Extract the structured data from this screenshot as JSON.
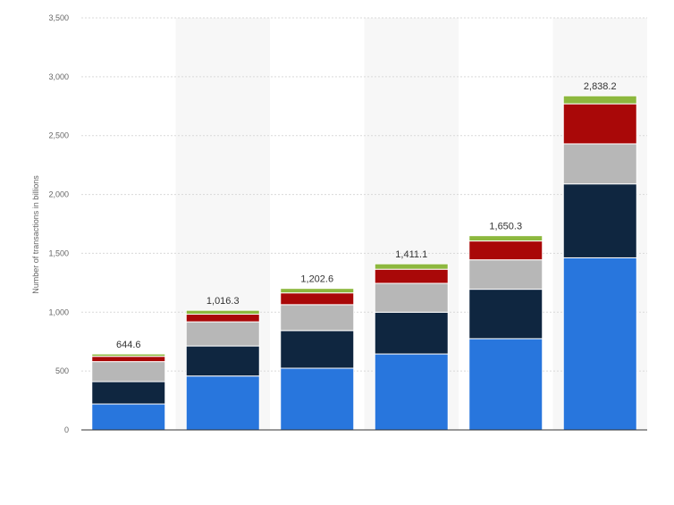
{
  "chart_data": {
    "type": "bar",
    "stacked": true,
    "title": "",
    "xlabel": "",
    "ylabel": "Number of transactions in billions",
    "ylim": [
      0,
      3500
    ],
    "yticks": [
      0,
      500,
      1000,
      1500,
      2000,
      2500,
      3000,
      3500
    ],
    "ytick_labels": [
      "0",
      "500",
      "1,000",
      "1,500",
      "2,000",
      "2,500",
      "3,000",
      "3,500"
    ],
    "grid": true,
    "legend": "none",
    "categories": [
      "",
      "",
      "",
      "",
      "",
      ""
    ],
    "totals": [
      644.6,
      1016.3,
      1202.6,
      1411.1,
      1650.3,
      2838.2
    ],
    "total_labels": [
      "644.6",
      "1,016.3",
      "1,202.6",
      "1,411.1",
      "1,650.3",
      "2,838.2"
    ],
    "series": [
      {
        "color": "#2876dd",
        "values": [
          220,
          458,
          524,
          645,
          775,
          1462
        ]
      },
      {
        "color": "#0f2640",
        "values": [
          190,
          255,
          320,
          355,
          420,
          628
        ]
      },
      {
        "color": "#b7b7b7",
        "values": [
          170,
          205,
          220,
          245,
          250,
          340
        ]
      },
      {
        "color": "#a90808",
        "values": [
          45,
          65,
          100,
          120,
          160,
          340
        ]
      },
      {
        "color": "#8db83e",
        "values": [
          20,
          33,
          38,
          46,
          45,
          68
        ]
      }
    ]
  }
}
